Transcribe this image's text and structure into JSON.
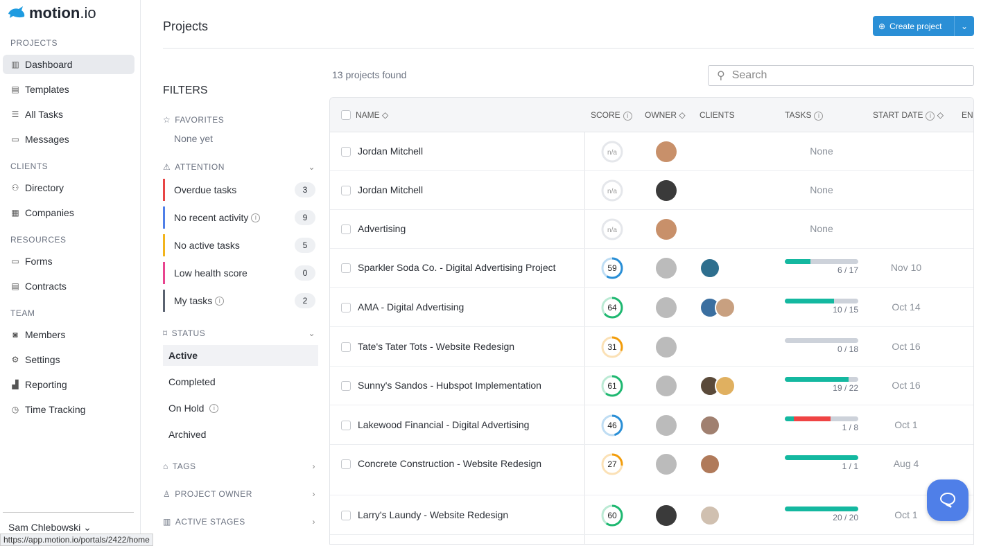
{
  "brand": {
    "name": "motion",
    "suffix": ".io",
    "color": "#1e9be0"
  },
  "sidebar": {
    "sections": [
      {
        "label": "PROJECTS",
        "items": [
          {
            "label": "Dashboard",
            "icon": "board-icon",
            "active": true
          },
          {
            "label": "Templates",
            "icon": "clipboard-icon"
          },
          {
            "label": "All Tasks",
            "icon": "list-icon"
          },
          {
            "label": "Messages",
            "icon": "message-icon"
          }
        ]
      },
      {
        "label": "CLIENTS",
        "items": [
          {
            "label": "Directory",
            "icon": "people-icon"
          },
          {
            "label": "Companies",
            "icon": "building-icon"
          }
        ]
      },
      {
        "label": "RESOURCES",
        "items": [
          {
            "label": "Forms",
            "icon": "form-icon"
          },
          {
            "label": "Contracts",
            "icon": "document-icon"
          }
        ]
      },
      {
        "label": "TEAM",
        "items": [
          {
            "label": "Members",
            "icon": "member-icon"
          },
          {
            "label": "Settings",
            "icon": "gear-icon"
          },
          {
            "label": "Reporting",
            "icon": "chart-icon"
          },
          {
            "label": "Time Tracking",
            "icon": "clock-icon"
          }
        ]
      }
    ],
    "user": "Sam Chlebowski"
  },
  "status_url": "https://app.motion.io/portals/2422/home",
  "header": {
    "title": "Projects",
    "create_label": "Create project"
  },
  "filters": {
    "title": "FILTERS",
    "favorites": {
      "label": "FAVORITES",
      "empty": "None yet"
    },
    "attention": {
      "label": "ATTENTION",
      "items": [
        {
          "label": "Overdue tasks",
          "count": "3",
          "color": "#e84545",
          "info": false
        },
        {
          "label": "No recent activity",
          "count": "9",
          "color": "#4f7fe8",
          "info": true
        },
        {
          "label": "No active tasks",
          "count": "5",
          "color": "#f2b41c",
          "info": false
        },
        {
          "label": "Low health score",
          "count": "0",
          "color": "#e8458f",
          "info": false
        },
        {
          "label": "My tasks",
          "count": "2",
          "color": "#5a6270",
          "info": true
        }
      ]
    },
    "status": {
      "label": "STATUS",
      "items": [
        {
          "label": "Active",
          "selected": true
        },
        {
          "label": "Completed"
        },
        {
          "label": "On Hold",
          "info": true
        },
        {
          "label": "Archived"
        }
      ]
    },
    "tags": "TAGS",
    "owner": "PROJECT OWNER",
    "stages": "ACTIVE STAGES"
  },
  "results": {
    "count_text": "13 projects found",
    "search_placeholder": "Search"
  },
  "table": {
    "columns": {
      "name": "NAME",
      "score": "SCORE",
      "owner": "OWNER",
      "clients": "CLIENTS",
      "tasks": "TASKS",
      "start": "START DATE",
      "end": "ENI"
    },
    "rows": [
      {
        "name": "Jordan Mitchell",
        "score": "n/a",
        "owner_color": "#c8906a",
        "clients": [],
        "tasks": "None",
        "start": ""
      },
      {
        "name": "Jordan Mitchell",
        "score": "n/a",
        "owner_color": "#3a3a3a",
        "clients": [],
        "tasks": "None",
        "start": ""
      },
      {
        "name": "Advertising",
        "score": "n/a",
        "owner_color": "#c8906a",
        "clients": [],
        "tasks": "None",
        "start": ""
      },
      {
        "name": "Sparkler Soda Co. - Digital Advertising Project",
        "score": "59",
        "ring": "#2a8fd6",
        "owner_color": "#bbbbbb",
        "clients": [
          "#2e6f8e"
        ],
        "tasks": "6 / 17",
        "done": 6,
        "overdue": 0,
        "total": 17,
        "start": "Nov 10"
      },
      {
        "name": "AMA - Digital Advertising",
        "score": "64",
        "ring": "#1fb871",
        "owner_color": "#bbbbbb",
        "clients": [
          "#3b6fa0",
          "#c8a080"
        ],
        "tasks": "10 / 15",
        "done": 10,
        "overdue": 0,
        "total": 15,
        "start": "Oct 14"
      },
      {
        "name": "Tate's Tater Tots - Website Redesign",
        "score": "31",
        "ring": "#f29d0c",
        "owner_color": "#bbbbbb",
        "clients": [],
        "tasks": "0 / 18",
        "done": 0,
        "overdue": 0,
        "total": 18,
        "start": "Oct 16"
      },
      {
        "name": "Sunny's Sandos - Hubspot Implementation",
        "score": "61",
        "ring": "#1fb871",
        "owner_color": "#bbbbbb",
        "clients": [
          "#5a4a3a",
          "#e0b060"
        ],
        "tasks": "19 / 22",
        "done": 19,
        "overdue": 0,
        "total": 22,
        "start": "Oct 16"
      },
      {
        "name": "Lakewood Financial - Digital Advertising",
        "score": "46",
        "ring": "#2a8fd6",
        "owner_color": "#bbbbbb",
        "clients": [
          "#a08070"
        ],
        "tasks": "1 / 8",
        "done": 1,
        "overdue": 4,
        "total": 8,
        "start": "Oct 1"
      },
      {
        "name": "Concrete Construction - Website Redesign",
        "score": "27",
        "ring": "#f29d0c",
        "owner_color": "#bbbbbb",
        "clients": [
          "#b07a5a"
        ],
        "tasks": "1 / 1",
        "done": 1,
        "overdue": 0,
        "total": 1,
        "start": "Aug 4"
      },
      {
        "name": "Larry's Laundy - Website Redesign",
        "score": "60",
        "ring": "#1fb871",
        "owner_color": "#3a3a3a",
        "clients": [
          "#d0c0b0"
        ],
        "tasks": "20 / 20",
        "done": 20,
        "overdue": 0,
        "total": 20,
        "start": "Oct 1"
      }
    ]
  },
  "colors": {
    "accent": "#2a8fd6",
    "done": "#14b8a0",
    "overdue": "#ef4444",
    "track": "#cdd2da"
  }
}
